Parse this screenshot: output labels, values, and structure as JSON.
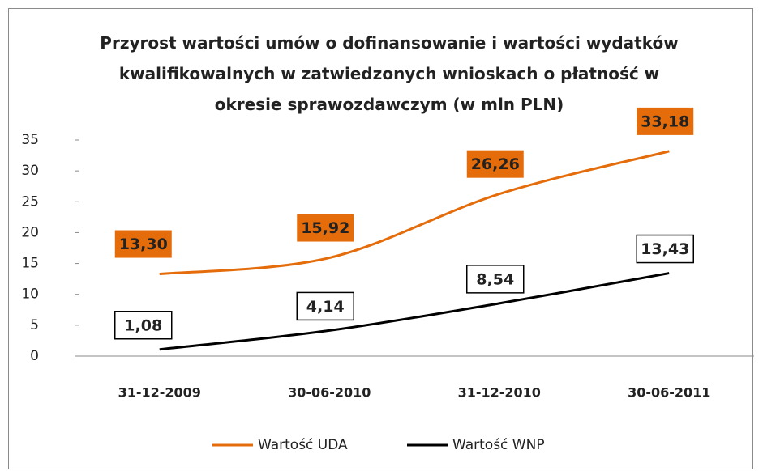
{
  "chart_data": {
    "type": "line",
    "title": "Przyrost wartości umów o dofinansowanie  i wartości wydatków kwalifikowalnych w zatwiedzonych wnioskach o płatność w okresie sprawozdawczym (w mln PLN)",
    "categories": [
      "31-12-2009",
      "30-06-2010",
      "31-12-2010",
      "30-06-2011"
    ],
    "series": [
      {
        "name": "Wartość UDA",
        "color": "#e46c0a",
        "values": [
          13.3,
          15.92,
          26.26,
          33.18
        ],
        "value_labels": [
          "13,30",
          "15,92",
          "26,26",
          "33,18"
        ]
      },
      {
        "name": "Wartość WNP",
        "color": "#000000",
        "values": [
          1.08,
          4.14,
          8.54,
          13.43
        ],
        "value_labels": [
          "1,08",
          "4,14",
          "8,54",
          "13,43"
        ]
      }
    ],
    "ylim": [
      0,
      35
    ],
    "yticks": [
      0,
      5,
      10,
      15,
      20,
      25,
      30,
      35
    ],
    "legend": "bottom"
  }
}
